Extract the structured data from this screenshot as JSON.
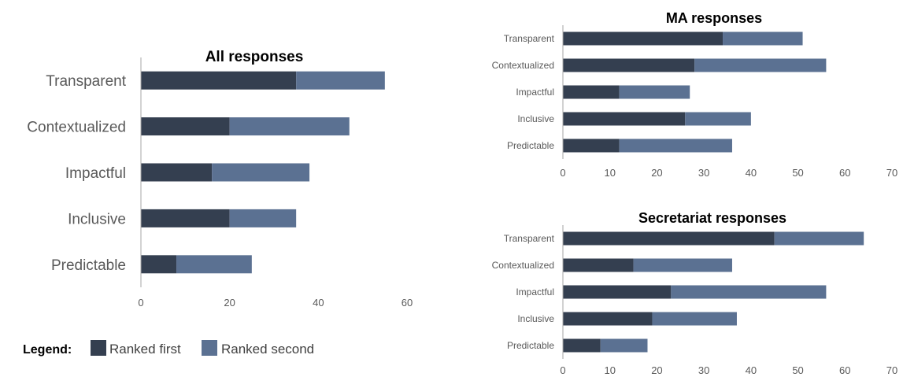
{
  "chart_data": [
    {
      "type": "bar",
      "orientation": "horizontal",
      "stacked": true,
      "title": "All responses",
      "categories": [
        "Transparent",
        "Contextualized",
        "Impactful",
        "Inclusive",
        "Predictable"
      ],
      "series": [
        {
          "name": "Ranked first",
          "values": [
            35,
            20,
            16,
            20,
            8
          ]
        },
        {
          "name": "Ranked second",
          "values": [
            20,
            27,
            22,
            15,
            17
          ]
        }
      ],
      "xlim": [
        0,
        60
      ],
      "xticks": [
        0,
        20,
        40,
        60
      ],
      "grid": false
    },
    {
      "type": "bar",
      "orientation": "horizontal",
      "stacked": true,
      "title": "MA responses",
      "categories": [
        "Transparent",
        "Contextualized",
        "Impactful",
        "Inclusive",
        "Predictable"
      ],
      "series": [
        {
          "name": "Ranked first",
          "values": [
            34,
            28,
            12,
            26,
            12
          ]
        },
        {
          "name": "Ranked second",
          "values": [
            17,
            28,
            15,
            14,
            24
          ]
        }
      ],
      "xlim": [
        0,
        70
      ],
      "xticks": [
        0,
        10,
        20,
        30,
        40,
        50,
        60,
        70
      ],
      "grid": false
    },
    {
      "type": "bar",
      "orientation": "horizontal",
      "stacked": true,
      "title": "Secretariat responses",
      "categories": [
        "Transparent",
        "Contextualized",
        "Impactful",
        "Inclusive",
        "Predictable"
      ],
      "series": [
        {
          "name": "Ranked first",
          "values": [
            45,
            15,
            23,
            19,
            8
          ]
        },
        {
          "name": "Ranked second",
          "values": [
            19,
            21,
            33,
            18,
            10
          ]
        }
      ],
      "xlim": [
        0,
        70
      ],
      "xticks": [
        0,
        10,
        20,
        30,
        40,
        50,
        60,
        70
      ],
      "grid": false
    }
  ],
  "legend": {
    "label": "Legend:",
    "items": [
      {
        "name": "Ranked first"
      },
      {
        "name": "Ranked second"
      }
    ]
  },
  "colors": {
    "ranked_first": "#343f50",
    "ranked_second": "#5b7192",
    "axis": "#a6a6a6"
  }
}
